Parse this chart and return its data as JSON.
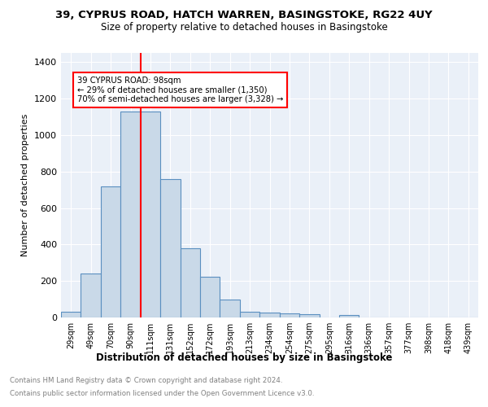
{
  "title_line1": "39, CYPRUS ROAD, HATCH WARREN, BASINGSTOKE, RG22 4UY",
  "title_line2": "Size of property relative to detached houses in Basingstoke",
  "xlabel": "Distribution of detached houses by size in Basingstoke",
  "ylabel": "Number of detached properties",
  "bar_labels": [
    "29sqm",
    "49sqm",
    "70sqm",
    "90sqm",
    "111sqm",
    "131sqm",
    "152sqm",
    "172sqm",
    "193sqm",
    "213sqm",
    "234sqm",
    "254sqm",
    "275sqm",
    "295sqm",
    "316sqm",
    "336sqm",
    "357sqm",
    "377sqm",
    "398sqm",
    "418sqm",
    "439sqm"
  ],
  "bar_values": [
    30,
    240,
    720,
    1130,
    1130,
    760,
    380,
    225,
    100,
    30,
    25,
    22,
    16,
    0,
    12,
    0,
    0,
    0,
    0,
    0,
    0
  ],
  "bar_color": "#c9d9e8",
  "bar_edge_color": "#5a8fc0",
  "vline_x": 3.5,
  "vline_color": "red",
  "annotation_text": "39 CYPRUS ROAD: 98sqm\n← 29% of detached houses are smaller (1,350)\n70% of semi-detached houses are larger (3,328) →",
  "annotation_box_color": "white",
  "annotation_box_edge_color": "red",
  "footnote_line1": "Contains HM Land Registry data © Crown copyright and database right 2024.",
  "footnote_line2": "Contains public sector information licensed under the Open Government Licence v3.0.",
  "ylim": [
    0,
    1450
  ],
  "plot_bg_color": "#eaf0f8"
}
